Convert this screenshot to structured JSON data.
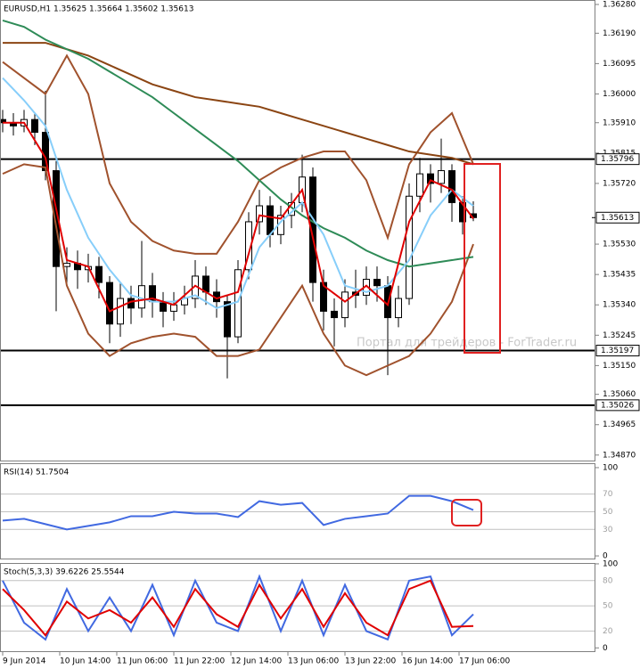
{
  "chart_data": [
    {
      "type": "candlestick",
      "title": "EURUSD,H1  1.35625 1.35664 1.35602 1.35613",
      "watermark": "Портал для трейдеров - ForTrader.ru",
      "xlim": [
        -0.75,
        166.25
      ],
      "ylim": [
        1.3485,
        1.36294
      ],
      "yticks": [
        {
          "value": 1.3628,
          "label": "1.36280"
        },
        {
          "value": 1.3619,
          "label": "1.36190"
        },
        1.36095,
        {
          "value": 1.36,
          "label": "1.36000"
        },
        {
          "value": 1.3591,
          "label": "1.35910"
        },
        1.35815,
        {
          "value": 1.3572,
          "label": "1.35720"
        },
        {
          "value": 1.3553,
          "label": "1.35530"
        },
        1.35435,
        {
          "value": 1.3534,
          "label": "1.35340"
        },
        1.35245,
        {
          "value": 1.3515,
          "label": "1.35150"
        },
        {
          "value": 1.3506,
          "label": "1.35060"
        },
        1.34965,
        {
          "value": 1.3487,
          "label": "1.34870"
        }
      ],
      "hlines": [
        1.35796,
        1.35197,
        1.35026
      ],
      "current_price": 1.35613,
      "x": [
        0,
        3,
        6,
        9,
        12,
        15,
        18,
        21,
        24,
        27,
        30,
        33,
        36,
        39,
        42,
        45,
        48,
        51,
        54,
        57,
        60,
        63,
        66,
        69,
        72,
        75,
        78,
        81,
        84,
        87,
        90,
        93,
        96,
        99,
        102,
        105,
        108,
        111,
        114,
        117,
        120,
        123,
        126,
        129,
        132
      ],
      "open": [
        1.3592,
        1.3591,
        1.359,
        1.3592,
        1.3588,
        1.3576,
        1.3546,
        1.3547,
        1.3545,
        1.3546,
        1.3541,
        1.3528,
        1.3536,
        1.3533,
        1.354,
        1.3535,
        1.3532,
        1.3534,
        1.3536,
        1.3543,
        1.3538,
        1.3535,
        1.3524,
        1.3545,
        1.356,
        1.3565,
        1.3556,
        1.3562,
        1.3566,
        1.3574,
        1.3541,
        1.3532,
        1.353,
        1.3538,
        1.3537,
        1.3542,
        1.354,
        1.353,
        1.3536,
        1.3568,
        1.3575,
        1.3572,
        1.3576,
        1.3566,
        1.35625
      ],
      "high": [
        1.3595,
        1.3594,
        1.3595,
        1.3594,
        1.3601,
        1.3579,
        1.3552,
        1.3551,
        1.355,
        1.3549,
        1.3543,
        1.3541,
        1.354,
        1.3554,
        1.3544,
        1.3538,
        1.3538,
        1.354,
        1.3548,
        1.3546,
        1.3542,
        1.3537,
        1.3548,
        1.3563,
        1.357,
        1.3568,
        1.3565,
        1.3569,
        1.3581,
        1.3577,
        1.3545,
        1.3536,
        1.3542,
        1.3545,
        1.3546,
        1.3546,
        1.3543,
        1.354,
        1.3572,
        1.358,
        1.3578,
        1.3586,
        1.3578,
        1.3568,
        1.35664
      ],
      "low": [
        1.3588,
        1.3587,
        1.3588,
        1.3584,
        1.3573,
        1.3532,
        1.354,
        1.3539,
        1.3541,
        1.3536,
        1.3522,
        1.3524,
        1.3528,
        1.353,
        1.353,
        1.3527,
        1.3529,
        1.3531,
        1.3533,
        1.3534,
        1.353,
        1.3511,
        1.3522,
        1.3542,
        1.3556,
        1.3552,
        1.3553,
        1.3558,
        1.3563,
        1.3535,
        1.3526,
        1.3521,
        1.3527,
        1.3533,
        1.3534,
        1.3535,
        1.3512,
        1.3527,
        1.3534,
        1.3563,
        1.3566,
        1.3569,
        1.356,
        1.3556,
        1.35602
      ],
      "close": [
        1.3591,
        1.359,
        1.3592,
        1.3588,
        1.3576,
        1.3546,
        1.3547,
        1.3545,
        1.3546,
        1.3541,
        1.3528,
        1.3536,
        1.3533,
        1.354,
        1.3535,
        1.3532,
        1.3534,
        1.3536,
        1.3543,
        1.3538,
        1.3535,
        1.3524,
        1.3545,
        1.356,
        1.3565,
        1.3556,
        1.3562,
        1.3566,
        1.3574,
        1.3541,
        1.3532,
        1.353,
        1.3538,
        1.3537,
        1.3542,
        1.354,
        1.353,
        1.3536,
        1.3568,
        1.3575,
        1.3572,
        1.3576,
        1.3566,
        1.356,
        1.35613
      ],
      "series": [
        {
          "color": "#a0522d",
          "x": [
            0,
            6,
            12,
            18,
            24,
            30,
            36,
            42,
            48,
            54,
            60,
            66,
            72,
            78,
            84,
            90,
            96,
            102,
            108,
            114,
            120,
            126,
            132
          ],
          "values": [
            1.361,
            1.3605,
            1.36,
            1.3612,
            1.36,
            1.3572,
            1.356,
            1.3554,
            1.3551,
            1.355,
            1.355,
            1.356,
            1.3573,
            1.3577,
            1.358,
            1.3582,
            1.3582,
            1.3573,
            1.3555,
            1.3578,
            1.3588,
            1.3594,
            1.3578
          ]
        },
        {
          "color": "#a0522d",
          "x": [
            0,
            6,
            12,
            18,
            24,
            30,
            36,
            42,
            48,
            54,
            60,
            66,
            72,
            78,
            84,
            90,
            96,
            102,
            108,
            114,
            120,
            126,
            132
          ],
          "values": [
            1.3575,
            1.3578,
            1.3577,
            1.354,
            1.3525,
            1.3518,
            1.3522,
            1.3524,
            1.3525,
            1.3524,
            1.3518,
            1.3518,
            1.352,
            1.353,
            1.354,
            1.3525,
            1.3515,
            1.3512,
            1.3515,
            1.3518,
            1.3525,
            1.3535,
            1.3553
          ]
        },
        {
          "color": "#8b4513",
          "x": [
            0,
            6,
            12,
            18,
            24,
            30,
            36,
            42,
            48,
            54,
            60,
            66,
            72,
            78,
            84,
            90,
            96,
            102,
            108,
            114,
            120,
            126,
            132
          ],
          "values": [
            1.3616,
            1.3616,
            1.3616,
            1.3614,
            1.3612,
            1.3609,
            1.3606,
            1.3603,
            1.3601,
            1.3599,
            1.3598,
            1.3597,
            1.3596,
            1.3594,
            1.3592,
            1.359,
            1.3588,
            1.3586,
            1.3584,
            1.3582,
            1.3581,
            1.358,
            1.3578
          ]
        },
        {
          "color": "#2e8b57",
          "x": [
            0,
            6,
            12,
            18,
            24,
            30,
            36,
            42,
            48,
            54,
            60,
            66,
            72,
            78,
            84,
            90,
            96,
            102,
            108,
            114,
            120,
            126,
            132
          ],
          "values": [
            1.3623,
            1.3621,
            1.3617,
            1.3614,
            1.3611,
            1.3607,
            1.3603,
            1.3599,
            1.3594,
            1.3589,
            1.3584,
            1.3579,
            1.3573,
            1.3567,
            1.3562,
            1.3558,
            1.3555,
            1.3551,
            1.3548,
            1.3546,
            1.3547,
            1.3548,
            1.3549
          ]
        },
        {
          "color": "#87cefa",
          "x": [
            0,
            6,
            12,
            18,
            24,
            30,
            36,
            42,
            48,
            54,
            60,
            66,
            72,
            78,
            84,
            90,
            96,
            102,
            108,
            114,
            120,
            126,
            132
          ],
          "values": [
            1.3605,
            1.3598,
            1.359,
            1.357,
            1.3555,
            1.3545,
            1.3537,
            1.3535,
            1.3535,
            1.3537,
            1.3533,
            1.3535,
            1.3552,
            1.356,
            1.3566,
            1.3556,
            1.354,
            1.3538,
            1.354,
            1.3548,
            1.3562,
            1.357,
            1.3565
          ]
        },
        {
          "color": "#e00000",
          "x": [
            0,
            6,
            12,
            18,
            24,
            30,
            36,
            42,
            48,
            54,
            60,
            66,
            72,
            78,
            84,
            90,
            96,
            102,
            108,
            114,
            120,
            126,
            132
          ],
          "values": [
            1.3591,
            1.3591,
            1.358,
            1.3548,
            1.3546,
            1.3532,
            1.3535,
            1.3536,
            1.3534,
            1.354,
            1.3536,
            1.3538,
            1.3562,
            1.3561,
            1.357,
            1.354,
            1.3535,
            1.354,
            1.3534,
            1.356,
            1.3573,
            1.357,
            1.3561
          ]
        }
      ]
    },
    {
      "type": "line",
      "title": "RSI(14) 51.7504",
      "xlim": [
        -0.75,
        166.25
      ],
      "ylim": [
        -4,
        105
      ],
      "yticks": [
        0,
        100
      ],
      "levels": [
        70,
        50,
        30
      ],
      "series": [
        {
          "color": "#4169e1",
          "x": [
            0,
            6,
            12,
            18,
            24,
            30,
            36,
            42,
            48,
            54,
            60,
            66,
            72,
            78,
            84,
            90,
            96,
            102,
            108,
            114,
            120,
            126,
            132
          ],
          "values": [
            40,
            42,
            36,
            30,
            34,
            38,
            45,
            45,
            50,
            48,
            48,
            44,
            62,
            58,
            60,
            35,
            42,
            45,
            48,
            68,
            68,
            62,
            52
          ]
        }
      ]
    },
    {
      "type": "line",
      "title": "Stoch(5,3,3) 39.6226 25.5544",
      "xlim": [
        -0.75,
        166.25
      ],
      "ylim": [
        -5,
        101
      ],
      "yticks": [
        0,
        100
      ],
      "levels": [
        80,
        50,
        20
      ],
      "xticks": [
        {
          "value": 0,
          "label": "9 Jun 2014"
        },
        {
          "value": 16,
          "label": "10 Jun 14:00"
        },
        {
          "value": 32,
          "label": "11 Jun 06:00"
        },
        {
          "value": 48,
          "label": "11 Jun 22:00"
        },
        {
          "value": 64,
          "label": "12 Jun 14:00"
        },
        {
          "value": 80,
          "label": "13 Jun 06:00"
        },
        {
          "value": 96,
          "label": "13 Jun 22:00"
        },
        {
          "value": 112,
          "label": "16 Jun 14:00"
        },
        {
          "value": 128,
          "label": "17 Jun 06:00"
        }
      ],
      "series": [
        {
          "color": "#4169e1",
          "x": [
            0,
            6,
            12,
            18,
            24,
            30,
            36,
            42,
            48,
            54,
            60,
            66,
            72,
            78,
            84,
            90,
            96,
            102,
            108,
            114,
            120,
            126,
            132
          ],
          "values": [
            80,
            30,
            10,
            70,
            20,
            60,
            20,
            75,
            15,
            80,
            30,
            20,
            85,
            20,
            80,
            15,
            75,
            20,
            10,
            80,
            85,
            15,
            40
          ]
        },
        {
          "color": "#e00000",
          "x": [
            0,
            6,
            12,
            18,
            24,
            30,
            36,
            42,
            48,
            54,
            60,
            66,
            72,
            78,
            84,
            90,
            96,
            102,
            108,
            114,
            120,
            126,
            132
          ],
          "values": [
            70,
            45,
            15,
            55,
            35,
            45,
            30,
            60,
            25,
            70,
            40,
            25,
            75,
            35,
            70,
            25,
            65,
            30,
            15,
            70,
            80,
            25,
            26
          ]
        }
      ]
    }
  ]
}
